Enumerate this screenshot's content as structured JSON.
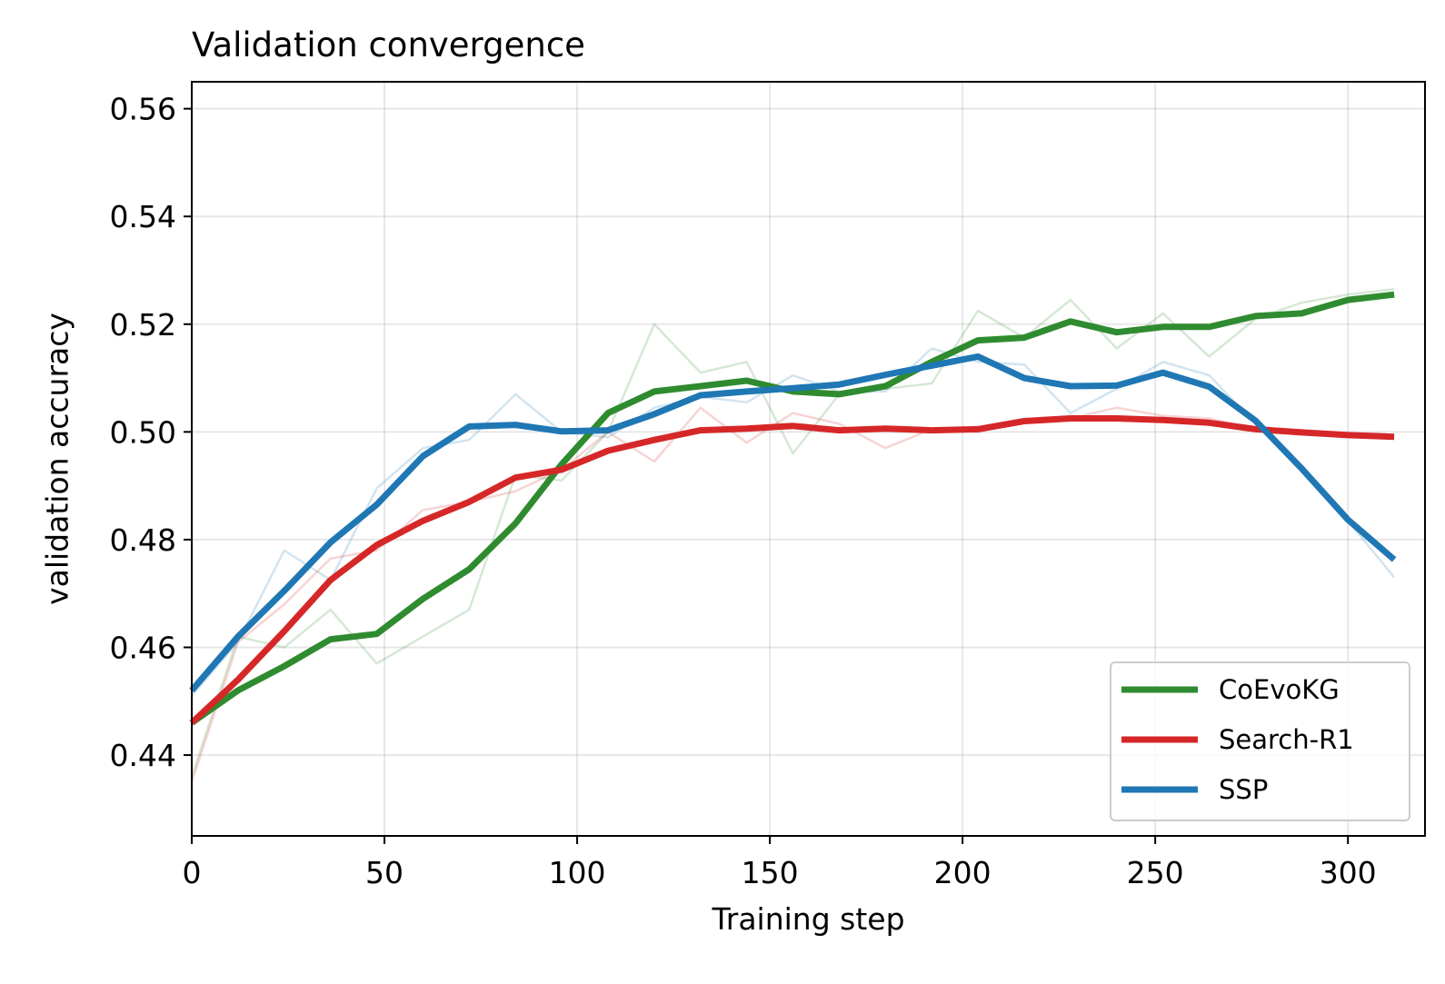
{
  "chart_data": {
    "type": "line",
    "title": "Validation convergence",
    "xlabel": "Training step",
    "ylabel": "validation accuracy",
    "xlim": [
      0,
      320
    ],
    "ylim": [
      0.425,
      0.565
    ],
    "xticks": [
      0,
      50,
      100,
      150,
      200,
      250,
      300
    ],
    "xtick_labels": [
      "0",
      "50",
      "100",
      "150",
      "200",
      "250",
      "300"
    ],
    "yticks": [
      0.44,
      0.46,
      0.48,
      0.5,
      0.52,
      0.54,
      0.56
    ],
    "ytick_labels": [
      "0.44",
      "0.46",
      "0.48",
      "0.50",
      "0.52",
      "0.54",
      "0.56"
    ],
    "grid": true,
    "legend_position": "bottom-right",
    "x": [
      0,
      12,
      24,
      36,
      48,
      60,
      72,
      84,
      96,
      108,
      120,
      132,
      144,
      156,
      168,
      180,
      192,
      204,
      216,
      228,
      240,
      252,
      264,
      276,
      288,
      300,
      312
    ],
    "series": [
      {
        "name": "CoEvoKG",
        "color": "#2f8b2f",
        "raw_values": [
          0.436,
          0.462,
          0.46,
          0.467,
          0.457,
          0.462,
          0.467,
          0.492,
          0.491,
          0.5,
          0.52,
          0.511,
          0.513,
          0.496,
          0.507,
          0.508,
          0.509,
          0.5225,
          0.5175,
          0.5245,
          0.5155,
          0.522,
          0.514,
          0.521,
          0.524,
          0.5255,
          0.5265
        ],
        "smoothed_values": [
          0.446,
          0.452,
          0.4565,
          0.4615,
          0.4625,
          0.469,
          0.4745,
          0.483,
          0.494,
          0.5035,
          0.5075,
          0.5085,
          0.5095,
          0.5075,
          0.507,
          0.5085,
          0.513,
          0.517,
          0.5175,
          0.5205,
          0.5185,
          0.5195,
          0.5195,
          0.5215,
          0.522,
          0.5245,
          0.5255
        ]
      },
      {
        "name": "Search-R1",
        "color": "#d62728",
        "raw_values": [
          0.435,
          0.461,
          0.468,
          0.4765,
          0.478,
          0.4855,
          0.487,
          0.489,
          0.493,
          0.5,
          0.4945,
          0.5045,
          0.498,
          0.5035,
          0.5015,
          0.497,
          0.5005,
          0.5,
          0.502,
          0.5025,
          0.5045,
          0.503,
          0.5025,
          0.5005,
          0.4995,
          0.4995,
          0.499
        ],
        "smoothed_values": [
          0.446,
          0.454,
          0.463,
          0.4725,
          0.479,
          0.4835,
          0.487,
          0.4915,
          0.493,
          0.4965,
          0.4985,
          0.5003,
          0.5006,
          0.5011,
          0.5003,
          0.5006,
          0.5003,
          0.5005,
          0.502,
          0.5025,
          0.5025,
          0.5022,
          0.5017,
          0.5005,
          0.4999,
          0.4994,
          0.4991
        ]
      },
      {
        "name": "SSP",
        "color": "#1f77b4",
        "raw_values": [
          0.451,
          0.461,
          0.478,
          0.4725,
          0.4895,
          0.497,
          0.4985,
          0.507,
          0.5,
          0.499,
          0.5045,
          0.5065,
          0.5055,
          0.5105,
          0.5075,
          0.5075,
          0.5155,
          0.513,
          0.5125,
          0.5035,
          0.508,
          0.513,
          0.5105,
          0.5015,
          0.493,
          0.4835,
          0.473
        ],
        "smoothed_values": [
          0.452,
          0.462,
          0.4705,
          0.4795,
          0.4865,
          0.4955,
          0.501,
          0.5013,
          0.5001,
          0.5003,
          0.5033,
          0.5068,
          0.5075,
          0.5081,
          0.5088,
          0.5106,
          0.5123,
          0.514,
          0.51,
          0.5085,
          0.5086,
          0.511,
          0.5084,
          0.5021,
          0.4932,
          0.4837,
          0.4763
        ]
      }
    ]
  }
}
